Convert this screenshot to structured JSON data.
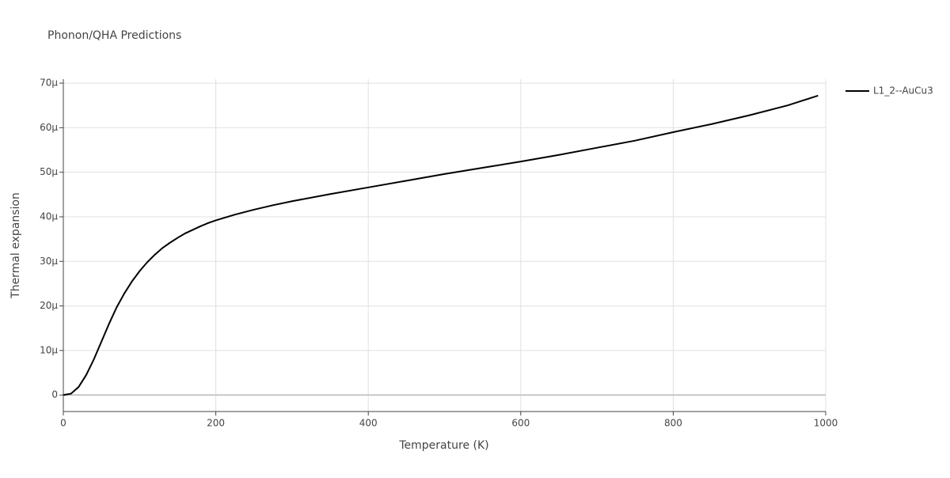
{
  "chart_data": {
    "type": "line",
    "title": "Phonon/QHA Predictions",
    "x_label": "Temperature (K)",
    "y_label": "Thermal expansion",
    "x": [
      0,
      10,
      20,
      30,
      40,
      50,
      60,
      70,
      80,
      90,
      100,
      110,
      120,
      130,
      140,
      150,
      160,
      170,
      180,
      190,
      200,
      225,
      250,
      275,
      300,
      350,
      400,
      450,
      500,
      550,
      600,
      650,
      700,
      750,
      800,
      850,
      900,
      950,
      990
    ],
    "series": [
      {
        "name": "L1_2--AuCu3",
        "color": "#000000",
        "values": [
          0,
          3e-07,
          1.8e-06,
          4.5e-06,
          8e-06,
          1.2e-05,
          1.6e-05,
          1.97e-05,
          2.28e-05,
          2.55e-05,
          2.78e-05,
          2.98e-05,
          3.15e-05,
          3.3e-05,
          3.42e-05,
          3.53e-05,
          3.63e-05,
          3.71e-05,
          3.79e-05,
          3.86e-05,
          3.92e-05,
          4.05e-05,
          4.16e-05,
          4.26e-05,
          4.35e-05,
          4.51e-05,
          4.66e-05,
          4.81e-05,
          4.96e-05,
          5.1e-05,
          5.24e-05,
          5.39e-05,
          5.55e-05,
          5.71e-05,
          5.9e-05,
          6.08e-05,
          6.28e-05,
          6.5e-05,
          6.72e-05
        ]
      }
    ],
    "xlim": [
      0,
      1000
    ],
    "xticks": [
      0,
      200,
      400,
      600,
      800,
      1000
    ],
    "ylim": [
      -3.7e-06,
      7.09e-05
    ],
    "yticks": [
      0,
      {
        "value": 1e-05,
        "label": "10μ"
      },
      {
        "value": 2e-05,
        "label": "20μ"
      },
      {
        "value": 3e-05,
        "label": "30μ"
      },
      {
        "value": 4e-05,
        "label": "40μ"
      },
      {
        "value": 5e-05,
        "label": "50μ"
      },
      {
        "value": 6e-05,
        "label": "60μ"
      },
      {
        "value": 7e-05,
        "label": "70μ"
      }
    ],
    "grid": true,
    "legend": "right"
  }
}
